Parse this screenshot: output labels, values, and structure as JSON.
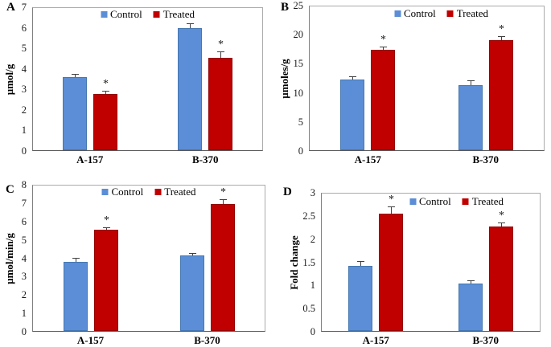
{
  "figure": {
    "significance_marker": "*",
    "colors": {
      "control_fill": "#5B8ED6",
      "control_border": "#4577B0",
      "treated_fill": "#C00000",
      "treated_border": "#940000",
      "error_bar": "#404040",
      "axis": "#7F7F7F",
      "text": "#000000"
    }
  },
  "chart_data": [
    {
      "panel": "A",
      "type": "bar",
      "title": "",
      "xlabel": "",
      "ylabel": "µmol/g",
      "ylim": [
        0,
        7
      ],
      "yticks": [
        0,
        1,
        2,
        3,
        4,
        5,
        6,
        7
      ],
      "categories": [
        "A-157",
        "B-370"
      ],
      "series": [
        {
          "name": "Control",
          "values": [
            3.55,
            5.95
          ],
          "errors": [
            0.15,
            0.25
          ],
          "significant": [
            false,
            false
          ]
        },
        {
          "name": "Treated",
          "values": [
            2.75,
            4.5
          ],
          "errors": [
            0.15,
            0.3
          ],
          "significant": [
            true,
            true
          ]
        }
      ],
      "legend": [
        "Control",
        "Treated"
      ],
      "legend_position": "top-center",
      "grid": false
    },
    {
      "panel": "B",
      "type": "bar",
      "title": "",
      "xlabel": "",
      "ylabel": "µmoles/g",
      "ylim": [
        0,
        25
      ],
      "yticks": [
        0,
        5,
        10,
        15,
        20,
        25
      ],
      "categories": [
        "A-157",
        "B-370"
      ],
      "series": [
        {
          "name": "Control",
          "values": [
            12.2,
            11.2
          ],
          "errors": [
            0.5,
            0.8
          ],
          "significant": [
            false,
            false
          ]
        },
        {
          "name": "Treated",
          "values": [
            17.2,
            18.9
          ],
          "errors": [
            0.5,
            0.7
          ],
          "significant": [
            true,
            true
          ]
        }
      ],
      "legend": [
        "Control",
        "Treated"
      ],
      "legend_position": "top-center",
      "grid": false
    },
    {
      "panel": "C",
      "type": "bar",
      "title": "",
      "xlabel": "",
      "ylabel": "µmol/min/g",
      "ylim": [
        0,
        8
      ],
      "yticks": [
        0,
        1,
        2,
        3,
        4,
        5,
        6,
        7,
        8
      ],
      "categories": [
        "A-157",
        "B-370"
      ],
      "series": [
        {
          "name": "Control",
          "values": [
            3.75,
            4.1
          ],
          "errors": [
            0.2,
            0.12
          ],
          "significant": [
            false,
            false
          ]
        },
        {
          "name": "Treated",
          "values": [
            5.5,
            6.9
          ],
          "errors": [
            0.12,
            0.25
          ],
          "significant": [
            true,
            true
          ]
        }
      ],
      "legend": [
        "Control",
        "Treated"
      ],
      "legend_position": "top-center",
      "grid": false
    },
    {
      "panel": "D",
      "type": "bar",
      "title": "",
      "xlabel": "",
      "ylabel": "Fold change",
      "ylim": [
        0,
        3
      ],
      "yticks": [
        0,
        0.5,
        1,
        1.5,
        2,
        2.5,
        3
      ],
      "categories": [
        "A-157",
        "B-370"
      ],
      "series": [
        {
          "name": "Control",
          "values": [
            1.4,
            1.03
          ],
          "errors": [
            0.1,
            0.07
          ],
          "significant": [
            false,
            false
          ]
        },
        {
          "name": "Treated",
          "values": [
            2.53,
            2.26
          ],
          "errors": [
            0.15,
            0.08
          ],
          "significant": [
            true,
            true
          ]
        }
      ],
      "legend": [
        "Control",
        "Treated"
      ],
      "legend_position": "top-center",
      "grid": false
    }
  ]
}
